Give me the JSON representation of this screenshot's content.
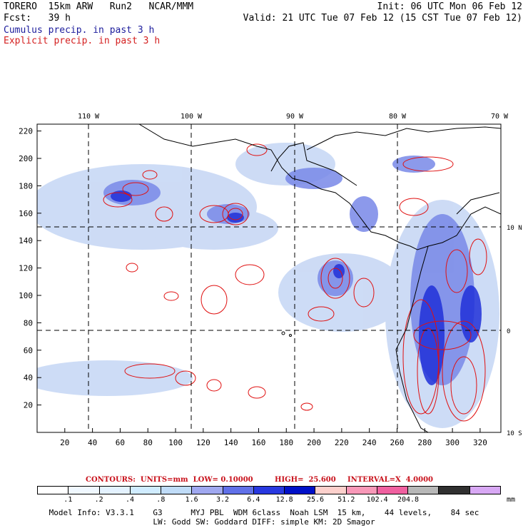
{
  "header": {
    "line1_left": "TORERO  15km ARW   Run2   NCAR/MMM",
    "line1_right": "Init: 06 UTC Mon 06 Feb 12",
    "line2_left": "Fcst:   39 h",
    "line2_right": "Valid: 21 UTC Tue 07 Feb 12 (15 CST Tue 07 Feb 12)",
    "legend_blue": "Cumulus precip. in past 3 h",
    "legend_red": "Explicit precip. in past 3 h"
  },
  "map": {
    "top_lon_labels": [
      "110 W",
      "100 W",
      "90 W",
      "80 W",
      "70 W"
    ],
    "right_lat_labels": [
      "10 N",
      "0",
      "10 S"
    ],
    "left_y_labels": [
      "220",
      "200",
      "180",
      "160",
      "140",
      "120",
      "100",
      "80",
      "60",
      "40",
      "20"
    ],
    "bottom_x_labels": [
      "20",
      "40",
      "60",
      "80",
      "100",
      "120",
      "140",
      "160",
      "180",
      "200",
      "220",
      "240",
      "260",
      "280",
      "300",
      "320"
    ],
    "y_range": [
      0,
      225
    ],
    "x_range": [
      0,
      335
    ],
    "colors": {
      "explicit": "#e01010",
      "cumulus_light": "#c8d8f5",
      "cumulus_mid": "#7888e8",
      "cumulus_dark": "#2030d8",
      "coast": "#000000"
    }
  },
  "contours_line": {
    "units": "CONTOURS:  UNITS=mm  LOW= 0.10000",
    "high": "HIGH=  25.600",
    "interval": "INTERVAL=X  4.0000"
  },
  "colorbar": {
    "colors": [
      "#ffffff",
      "#f0f8ff",
      "#e4f2ff",
      "#d0ecff",
      "#c0dcf8",
      "#a0a8f0",
      "#6070e8",
      "#2838e0",
      "#0010c8",
      "#fcd0cc",
      "#f898b8",
      "#f060a0",
      "#b8b8b8",
      "#303030",
      "#d8a8f4"
    ],
    "labels": [
      ".1",
      ".2",
      ".4",
      ".8",
      "1.6",
      "3.2",
      "6.4",
      "12.8",
      "25.6",
      "51.2",
      "102.4",
      "204.8"
    ],
    "unit": "mm"
  },
  "footer": {
    "line1": "Model Info: V3.3.1    G3      MYJ PBL  WDM 6class  Noah LSM  15 km,    44 levels,    84 sec",
    "line2": "LW: Godd SW: Goddard DIFF: simple KM: 2D Smagor"
  }
}
